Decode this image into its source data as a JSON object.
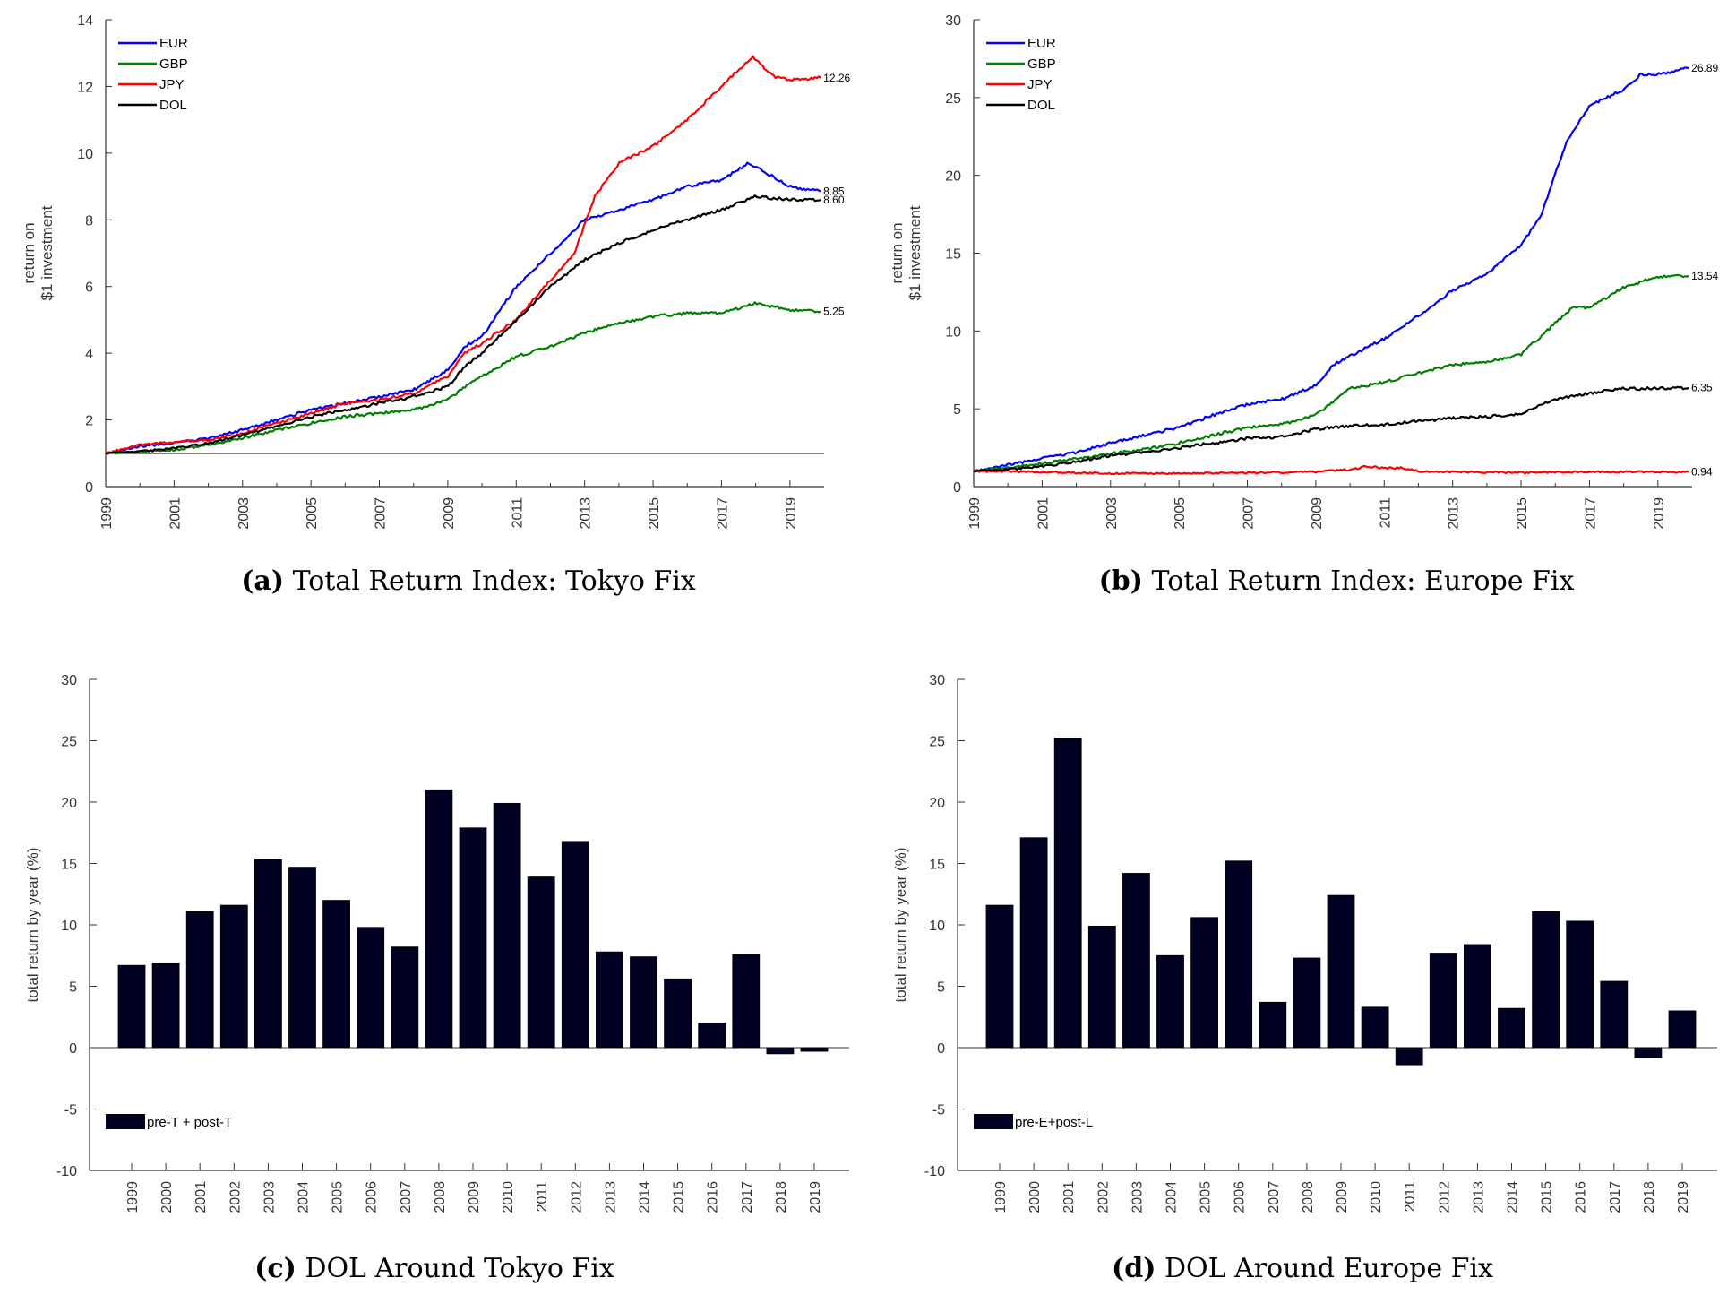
{
  "chart_data": [
    {
      "panel": "a",
      "type": "line",
      "caption_label": "(a)",
      "caption_text": "Total Return Index: Tokyo Fix",
      "ylabel": [
        "return on",
        "$1 investment"
      ],
      "xlabel": "",
      "xlim": [
        1999,
        2020
      ],
      "ylim": [
        0,
        14
      ],
      "yticks": [
        0,
        2,
        4,
        6,
        8,
        10,
        12,
        14
      ],
      "xticks": [
        1999,
        2001,
        2003,
        2005,
        2007,
        2009,
        2011,
        2013,
        2015,
        2017,
        2019
      ],
      "legend_position": "top-left",
      "reference_line": 1,
      "series": [
        {
          "name": "EUR",
          "color": "#0000ff",
          "end_label": "8.85",
          "x": [
            1999,
            2000,
            2001,
            2002,
            2003,
            2004,
            2005,
            2006,
            2007,
            2008,
            2009,
            2009.5,
            2010,
            2011,
            2012,
            2013,
            2014,
            2015,
            2016,
            2017,
            2017.8,
            2018.5,
            2019,
            2019.9
          ],
          "y": [
            1.0,
            1.2,
            1.3,
            1.45,
            1.7,
            2.0,
            2.3,
            2.5,
            2.7,
            2.9,
            3.5,
            4.2,
            4.5,
            6.0,
            7.0,
            8.0,
            8.3,
            8.6,
            9.0,
            9.2,
            9.7,
            9.3,
            9.0,
            8.85
          ]
        },
        {
          "name": "GBP",
          "color": "#008000",
          "end_label": "5.25",
          "x": [
            1999,
            2000,
            2001,
            2002,
            2003,
            2004,
            2005,
            2006,
            2007,
            2008,
            2009,
            2009.5,
            2010,
            2011,
            2012,
            2013,
            2014,
            2015,
            2016,
            2017,
            2018,
            2019,
            2019.9
          ],
          "y": [
            1.0,
            1.05,
            1.1,
            1.25,
            1.45,
            1.7,
            1.9,
            2.1,
            2.2,
            2.3,
            2.6,
            3.0,
            3.3,
            3.9,
            4.2,
            4.6,
            4.9,
            5.1,
            5.2,
            5.2,
            5.5,
            5.3,
            5.25
          ]
        },
        {
          "name": "JPY",
          "color": "#ff0000",
          "end_label": "12.26",
          "x": [
            1999,
            2000,
            2001,
            2002,
            2003,
            2004,
            2005,
            2006,
            2007,
            2008,
            2009,
            2009.5,
            2010,
            2011,
            2012,
            2012.7,
            2013.3,
            2014,
            2015,
            2016,
            2017,
            2017.9,
            2018.5,
            2019,
            2019.9
          ],
          "y": [
            1.0,
            1.25,
            1.35,
            1.4,
            1.6,
            1.9,
            2.2,
            2.5,
            2.6,
            2.8,
            3.3,
            4.0,
            4.3,
            5.0,
            6.2,
            7.0,
            8.7,
            9.7,
            10.2,
            11.0,
            12.0,
            12.9,
            12.3,
            12.2,
            12.26
          ]
        },
        {
          "name": "DOL",
          "color": "#000000",
          "end_label": "8.60",
          "x": [
            1999,
            2000,
            2001,
            2002,
            2003,
            2004,
            2005,
            2006,
            2007,
            2008,
            2009,
            2009.5,
            2010,
            2011,
            2012,
            2013,
            2014,
            2015,
            2016,
            2017,
            2018,
            2019,
            2019.9
          ],
          "y": [
            1.0,
            1.05,
            1.15,
            1.3,
            1.55,
            1.8,
            2.1,
            2.3,
            2.5,
            2.7,
            3.0,
            3.6,
            4.0,
            5.0,
            6.0,
            6.8,
            7.3,
            7.7,
            8.0,
            8.3,
            8.7,
            8.6,
            8.6
          ]
        }
      ]
    },
    {
      "panel": "b",
      "type": "line",
      "caption_label": "(b)",
      "caption_text": "Total Return Index: Europe Fix",
      "ylabel": [
        "return on",
        "$1 investment"
      ],
      "xlabel": "",
      "xlim": [
        1999,
        2020
      ],
      "ylim": [
        0,
        30
      ],
      "yticks": [
        0,
        5,
        10,
        15,
        20,
        25,
        30
      ],
      "xticks": [
        1999,
        2001,
        2003,
        2005,
        2007,
        2009,
        2011,
        2013,
        2015,
        2017,
        2019
      ],
      "legend_position": "top-left",
      "series": [
        {
          "name": "EUR",
          "color": "#0000ff",
          "end_label": "26.89",
          "x": [
            1999,
            2000,
            2001,
            2002,
            2003,
            2004,
            2005,
            2006,
            2007,
            2008,
            2009,
            2009.5,
            2010,
            2011,
            2012,
            2013,
            2014,
            2015,
            2015.6,
            2016.3,
            2017,
            2018,
            2018.5,
            2019,
            2019.9
          ],
          "y": [
            1.0,
            1.4,
            1.8,
            2.2,
            2.8,
            3.3,
            3.8,
            4.6,
            5.3,
            5.6,
            6.5,
            7.8,
            8.4,
            9.5,
            11.0,
            12.6,
            13.7,
            15.5,
            17.5,
            22.0,
            24.5,
            25.5,
            26.5,
            26.5,
            26.89
          ]
        },
        {
          "name": "GBP",
          "color": "#008000",
          "end_label": "13.54",
          "x": [
            1999,
            2000,
            2001,
            2002,
            2003,
            2004,
            2005,
            2006,
            2007,
            2008,
            2009,
            2010,
            2011,
            2012,
            2013,
            2014,
            2015,
            2016,
            2016.5,
            2017,
            2018,
            2019,
            2019.9
          ],
          "y": [
            1.0,
            1.2,
            1.5,
            1.8,
            2.1,
            2.4,
            2.8,
            3.3,
            3.8,
            4.0,
            4.6,
            6.3,
            6.7,
            7.3,
            7.8,
            8.0,
            8.5,
            10.5,
            11.5,
            11.5,
            12.8,
            13.5,
            13.54
          ]
        },
        {
          "name": "JPY",
          "color": "#ff0000",
          "end_label": "0.94",
          "x": [
            1999,
            2001,
            2003,
            2005,
            2007,
            2009,
            2010,
            2010.5,
            2011,
            2011.5,
            2012,
            2013,
            2015,
            2017,
            2019,
            2019.9
          ],
          "y": [
            1.0,
            0.95,
            0.85,
            0.85,
            0.9,
            0.95,
            1.1,
            1.3,
            1.2,
            1.2,
            1.0,
            0.95,
            0.9,
            0.95,
            0.95,
            0.94
          ]
        },
        {
          "name": "DOL",
          "color": "#000000",
          "end_label": "6.35",
          "x": [
            1999,
            2000,
            2001,
            2002,
            2003,
            2004,
            2005,
            2006,
            2007,
            2008,
            2009,
            2010,
            2011,
            2012,
            2013,
            2014,
            2015,
            2016,
            2017,
            2018,
            2019,
            2019.9
          ],
          "y": [
            1.0,
            1.1,
            1.3,
            1.6,
            2.0,
            2.2,
            2.5,
            2.8,
            3.1,
            3.2,
            3.7,
            3.9,
            4.0,
            4.2,
            4.4,
            4.5,
            4.7,
            5.6,
            6.0,
            6.3,
            6.3,
            6.35
          ]
        }
      ]
    },
    {
      "panel": "c",
      "type": "bar",
      "caption_label": "(c)",
      "caption_text": "DOL Around Tokyo Fix",
      "ylabel": "total return by year (%)",
      "xlabel": "",
      "ylim": [
        -10,
        30
      ],
      "yticks": [
        -10,
        -5,
        0,
        5,
        10,
        15,
        20,
        25,
        30
      ],
      "color": "#000022",
      "legend_position": "bottom-left",
      "categories": [
        "1999",
        "2000",
        "2001",
        "2002",
        "2003",
        "2004",
        "2005",
        "2006",
        "2007",
        "2008",
        "2009",
        "2010",
        "2011",
        "2012",
        "2013",
        "2014",
        "2015",
        "2016",
        "2017",
        "2018",
        "2019"
      ],
      "series": [
        {
          "name": "pre-T  + post-T",
          "values": [
            6.7,
            6.9,
            11.1,
            11.6,
            15.3,
            14.7,
            12.0,
            9.8,
            8.2,
            21.0,
            17.9,
            19.9,
            13.9,
            16.8,
            7.8,
            7.4,
            5.6,
            2.0,
            7.6,
            -0.5,
            -0.3
          ]
        }
      ]
    },
    {
      "panel": "d",
      "type": "bar",
      "caption_label": "(d)",
      "caption_text": "DOL Around Europe Fix",
      "ylabel": "total return by year (%)",
      "xlabel": "",
      "ylim": [
        -10,
        30
      ],
      "yticks": [
        -10,
        -5,
        0,
        5,
        10,
        15,
        20,
        25,
        30
      ],
      "color": "#000022",
      "legend_position": "bottom-left",
      "categories": [
        "1999",
        "2000",
        "2001",
        "2002",
        "2003",
        "2004",
        "2005",
        "2006",
        "2007",
        "2008",
        "2009",
        "2010",
        "2011",
        "2012",
        "2013",
        "2014",
        "2015",
        "2016",
        "2017",
        "2018",
        "2019"
      ],
      "series": [
        {
          "name": "pre-E+post-L",
          "values": [
            11.6,
            17.1,
            25.2,
            9.9,
            14.2,
            7.5,
            10.6,
            15.2,
            3.7,
            7.3,
            12.4,
            3.3,
            -1.4,
            7.7,
            8.4,
            3.2,
            11.1,
            10.3,
            5.4,
            -0.8,
            3.0
          ]
        }
      ]
    }
  ]
}
